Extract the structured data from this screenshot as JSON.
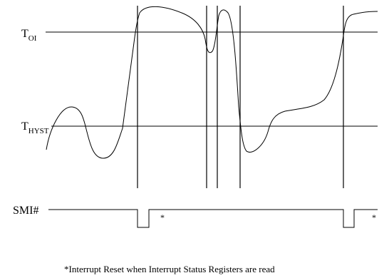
{
  "labels": {
    "t_oi_main": "T",
    "t_oi_sub": "OI",
    "t_hyst_main": "T",
    "t_hyst_sub": "HYST",
    "smi": "SMI#",
    "star": "*",
    "footnote": "*Interrupt Reset when Interrupt Status Registers are read"
  }
}
